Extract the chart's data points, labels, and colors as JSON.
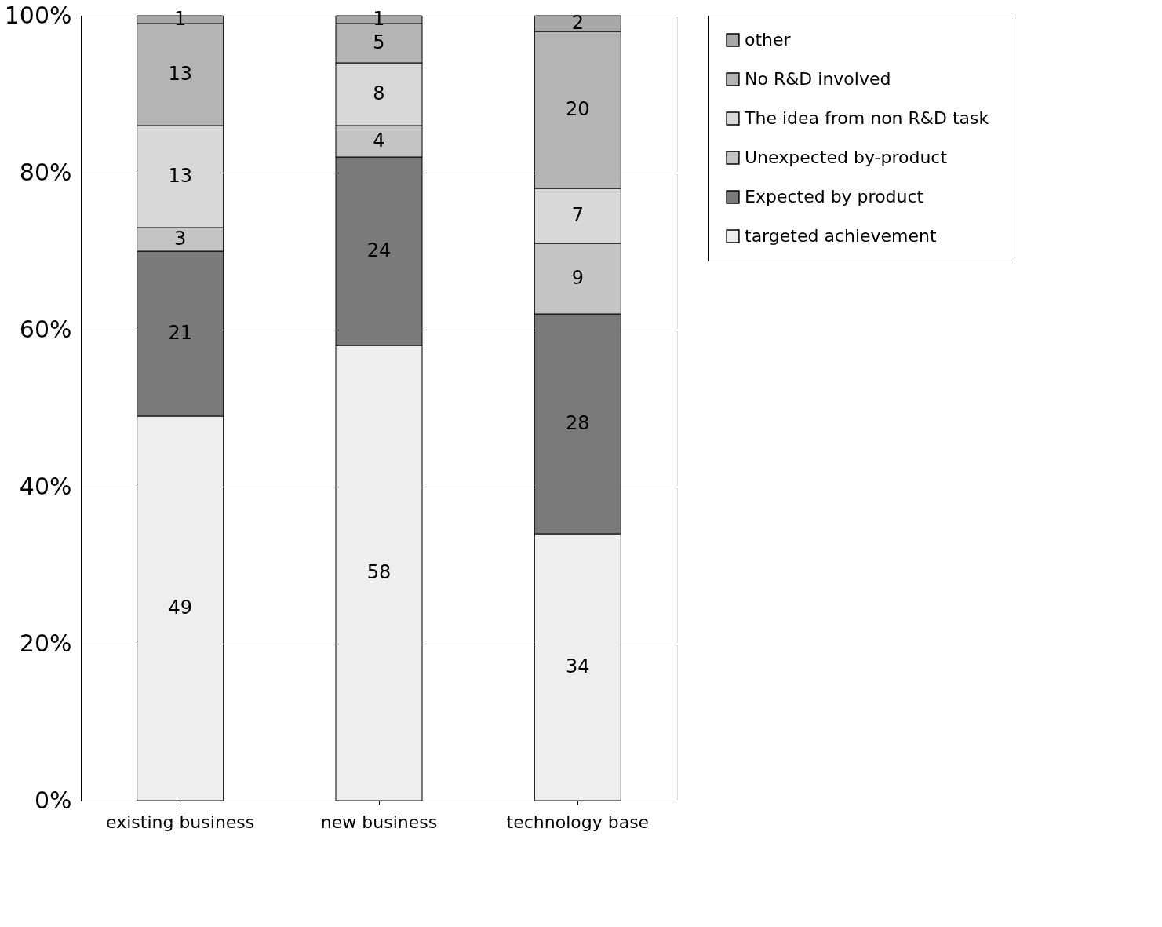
{
  "chart_data": {
    "type": "bar",
    "stacked": true,
    "categories": [
      "existing business",
      "new business",
      "technology base"
    ],
    "series": [
      {
        "name": "targeted achievement",
        "color": "#eeeeee",
        "values": [
          49,
          58,
          34
        ]
      },
      {
        "name": "Expected by product",
        "color": "#7a7a7a",
        "values": [
          21,
          24,
          28
        ]
      },
      {
        "name": "Unexpected by-product",
        "color": "#c4c4c4",
        "values": [
          3,
          4,
          9
        ]
      },
      {
        "name": "The idea  from non R&D task",
        "color": "#d8d8d8",
        "values": [
          13,
          8,
          7
        ]
      },
      {
        "name": "No R&D involved",
        "color": "#b4b4b4",
        "values": [
          13,
          5,
          20
        ]
      },
      {
        "name": "other",
        "color": "#a8a8a8",
        "values": [
          1,
          1,
          2
        ]
      }
    ],
    "ylim": [
      0,
      100
    ],
    "yticks": [
      {
        "value": 0,
        "label": "0%"
      },
      {
        "value": 20,
        "label": "20%"
      },
      {
        "value": 40,
        "label": "40%"
      },
      {
        "value": 60,
        "label": "60%"
      },
      {
        "value": 80,
        "label": "80%"
      },
      {
        "value": 100,
        "label": "100%"
      }
    ],
    "grid": "y",
    "legend": "right",
    "data_labels": true
  }
}
